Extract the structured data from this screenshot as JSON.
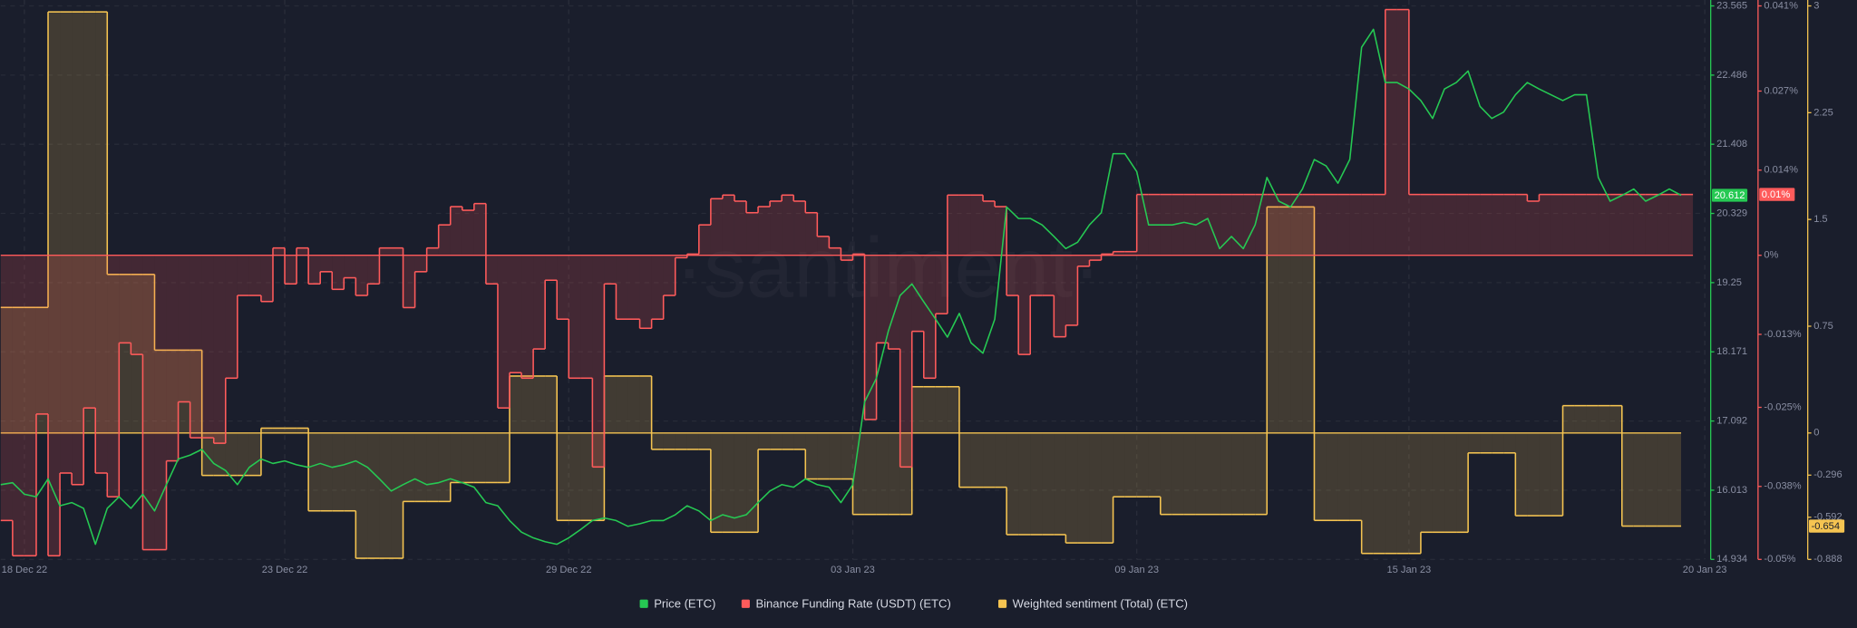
{
  "chart_data": {
    "type": "line",
    "watermark": "·santiment·",
    "categories": [
      null,
      null,
      "18 Dec 22",
      null,
      null,
      null,
      null,
      null,
      null,
      null,
      null,
      null,
      null,
      null,
      null,
      null,
      null,
      null,
      null,
      null,
      null,
      null,
      null,
      null,
      "23 Dec 22",
      null,
      null,
      null,
      null,
      null,
      null,
      null,
      null,
      null,
      null,
      null,
      null,
      null,
      null,
      null,
      null,
      null,
      null,
      null,
      null,
      null,
      null,
      null,
      "29 Dec 22",
      null,
      null,
      null,
      null,
      null,
      null,
      null,
      null,
      null,
      null,
      null,
      null,
      null,
      null,
      null,
      null,
      null,
      null,
      null,
      null,
      null,
      null,
      null,
      "03 Jan 23",
      null,
      null,
      null,
      null,
      null,
      null,
      null,
      null,
      null,
      null,
      null,
      null,
      null,
      null,
      null,
      null,
      null,
      null,
      null,
      null,
      null,
      null,
      null,
      "09 Jan 23",
      null,
      null,
      null,
      null,
      null,
      null,
      null,
      null,
      null,
      null,
      null,
      null,
      null,
      null,
      null,
      null,
      null,
      null,
      null,
      null,
      null,
      null,
      "15 Jan 23",
      null,
      null,
      null,
      null,
      null,
      null,
      null,
      null,
      null,
      null,
      null,
      null,
      null,
      null,
      null,
      null,
      null,
      null,
      null,
      null,
      null,
      null,
      null,
      null,
      "20 Jan 23"
    ],
    "series": [
      {
        "name": "Price (ETC)",
        "color": "#26c953",
        "style": "line",
        "axis": "y",
        "last_value_label": "20.612",
        "values": [
          16.1,
          16.13,
          15.95,
          15.91,
          16.19,
          15.77,
          15.82,
          15.73,
          15.17,
          15.73,
          15.91,
          15.73,
          15.95,
          15.69,
          16.1,
          16.5,
          16.56,
          16.65,
          16.43,
          16.32,
          16.1,
          16.37,
          16.5,
          16.43,
          16.47,
          16.41,
          16.37,
          16.43,
          16.37,
          16.41,
          16.47,
          16.37,
          16.19,
          16.0,
          16.1,
          16.19,
          16.1,
          16.13,
          16.19,
          16.13,
          16.06,
          15.82,
          15.77,
          15.54,
          15.36,
          15.27,
          15.21,
          15.17,
          15.27,
          15.4,
          15.54,
          15.58,
          15.54,
          15.45,
          15.49,
          15.54,
          15.54,
          15.63,
          15.77,
          15.69,
          15.54,
          15.63,
          15.58,
          15.63,
          15.82,
          16.0,
          16.1,
          16.06,
          16.19,
          16.1,
          16.06,
          15.82,
          16.1,
          17.39,
          17.76,
          18.49,
          19.05,
          19.23,
          18.95,
          18.68,
          18.4,
          18.77,
          18.31,
          18.15,
          18.68,
          20.43,
          20.25,
          20.25,
          20.15,
          19.97,
          19.78,
          19.88,
          20.15,
          20.34,
          21.26,
          21.26,
          20.98,
          20.15,
          20.15,
          20.15,
          20.19,
          20.15,
          20.25,
          19.78,
          19.97,
          19.78,
          20.15,
          20.89,
          20.52,
          20.43,
          20.71,
          21.17,
          21.07,
          20.8,
          21.17,
          22.92,
          23.2,
          22.37,
          22.37,
          22.27,
          22.09,
          21.81,
          22.27,
          22.37,
          22.55,
          22.0,
          21.81,
          21.91,
          22.18,
          22.37,
          22.27,
          22.18,
          22.09,
          22.18,
          22.18,
          20.89,
          20.52,
          20.61,
          20.71,
          20.52,
          20.61,
          20.71,
          20.612,
          null,
          null
        ]
      },
      {
        "name": "Binance Funding Rate (USDT) (ETC)",
        "color": "#ff5b5b",
        "style": "step",
        "axis": "y2",
        "last_value_label": "0.01%",
        "values": [
          -0.0436,
          -0.0494,
          -0.0494,
          -0.0261,
          -0.0494,
          -0.0358,
          -0.0377,
          -0.0251,
          -0.0358,
          -0.0397,
          -0.0144,
          -0.0163,
          -0.0484,
          -0.0484,
          -0.0338,
          -0.0241,
          -0.03,
          -0.03,
          -0.0309,
          -0.0202,
          -0.0066,
          -0.0066,
          -0.0076,
          0.0012,
          -0.0047,
          0.0012,
          -0.0047,
          -0.0027,
          -0.0056,
          -0.0037,
          -0.0066,
          -0.0047,
          0.0012,
          0.0012,
          -0.0086,
          -0.0027,
          0.0012,
          0.005,
          0.008,
          0.0074,
          0.0085,
          -0.0047,
          -0.0251,
          -0.0193,
          -0.0202,
          -0.0154,
          -0.0041,
          -0.0105,
          -0.0202,
          -0.0202,
          -0.0348,
          -0.0047,
          -0.0105,
          -0.0105,
          -0.012,
          -0.0105,
          -0.0066,
          -0.0004,
          0.0002,
          0.005,
          0.0093,
          0.0099,
          0.0089,
          0.007,
          0.008,
          0.0089,
          0.0099,
          0.0089,
          0.007,
          0.0031,
          0.0012,
          -0.0008,
          0.0002,
          -0.027,
          -0.0144,
          -0.0154,
          -0.0348,
          -0.0125,
          -0.0202,
          -0.0096,
          0.0099,
          0.0099,
          0.0099,
          0.0089,
          0.008,
          -0.0066,
          -0.0163,
          -0.0066,
          -0.0066,
          -0.0134,
          -0.0115,
          -0.0018,
          -0.0008,
          0.0002,
          0.0006,
          0.0006,
          0.01,
          0.01,
          0.01,
          0.01,
          0.01,
          0.01,
          0.01,
          0.01,
          0.01,
          0.01,
          0.01,
          0.01,
          0.01,
          0.01,
          0.01,
          0.01,
          0.01,
          0.01,
          0.01,
          0.01,
          0.01,
          0.0404,
          0.0404,
          0.01,
          0.01,
          0.01,
          0.01,
          0.01,
          0.01,
          0.01,
          0.01,
          0.01,
          0.01,
          0.0089,
          0.01,
          0.01,
          0.01,
          0.01,
          0.01,
          0.01,
          0.01,
          0.01,
          0.01,
          0.01,
          0.01,
          0.01,
          0.01,
          null,
          null
        ]
      },
      {
        "name": "Weighted sentiment (Total) (ETC)",
        "color": "#f5c451",
        "style": "step",
        "axis": "y3",
        "last_value_label": "-0.654",
        "values": [
          0.882,
          0.882,
          0.882,
          0.882,
          2.958,
          2.958,
          2.958,
          2.958,
          2.958,
          1.114,
          1.114,
          1.114,
          1.114,
          0.582,
          0.582,
          0.582,
          0.582,
          -0.298,
          -0.298,
          -0.298,
          -0.298,
          -0.298,
          0.034,
          0.034,
          0.034,
          0.034,
          -0.547,
          -0.547,
          -0.547,
          -0.547,
          -0.88,
          -0.88,
          -0.88,
          -0.88,
          -0.481,
          -0.481,
          -0.481,
          -0.481,
          -0.348,
          -0.348,
          -0.348,
          -0.348,
          -0.348,
          0.4,
          0.4,
          0.4,
          0.4,
          -0.614,
          -0.614,
          -0.614,
          -0.614,
          0.4,
          0.4,
          0.4,
          0.4,
          -0.115,
          -0.115,
          -0.115,
          -0.115,
          -0.115,
          -0.697,
          -0.697,
          -0.697,
          -0.697,
          -0.115,
          -0.115,
          -0.115,
          -0.115,
          -0.323,
          -0.323,
          -0.323,
          -0.323,
          -0.572,
          -0.572,
          -0.572,
          -0.572,
          -0.572,
          0.325,
          0.325,
          0.325,
          0.325,
          -0.381,
          -0.381,
          -0.381,
          -0.381,
          -0.714,
          -0.714,
          -0.714,
          -0.714,
          -0.714,
          -0.772,
          -0.772,
          -0.772,
          -0.772,
          -0.448,
          -0.448,
          -0.448,
          -0.448,
          -0.572,
          -0.572,
          -0.572,
          -0.572,
          -0.572,
          -0.572,
          -0.572,
          -0.572,
          -0.572,
          1.588,
          1.588,
          1.588,
          1.588,
          -0.614,
          -0.614,
          -0.614,
          -0.614,
          -0.846,
          -0.846,
          -0.846,
          -0.846,
          -0.846,
          -0.697,
          -0.697,
          -0.697,
          -0.697,
          -0.14,
          -0.14,
          -0.14,
          -0.14,
          -0.581,
          -0.581,
          -0.581,
          -0.581,
          0.192,
          0.192,
          0.192,
          0.192,
          0.192,
          -0.654,
          -0.654,
          -0.654,
          -0.654,
          -0.654,
          null,
          null,
          null
        ]
      }
    ],
    "ylim": [
      14.934,
      23.565
    ],
    "yticks": [
      14.934,
      16.013,
      17.092,
      18.171,
      19.25,
      20.329,
      21.408,
      22.486,
      23.565
    ],
    "y2lim": [
      -0.05,
      0.041
    ],
    "y2ticks": [
      {
        "value": -0.05,
        "label": "-0.05%"
      },
      {
        "value": -0.038,
        "label": "-0.038%"
      },
      {
        "value": -0.025,
        "label": "-0.025%"
      },
      {
        "value": -0.013,
        "label": "-0.013%"
      },
      {
        "value": 0,
        "label": "0%"
      },
      {
        "value": 0.014,
        "label": "0.014%"
      },
      {
        "value": 0.027,
        "label": "0.027%"
      },
      {
        "value": 0.041,
        "label": "0.041%"
      }
    ],
    "y3lim": [
      -0.888,
      3
    ],
    "y3ticks": [
      -0.888,
      -0.592,
      -0.296,
      0,
      0.75,
      1.5,
      2.25,
      3
    ],
    "grid": true
  }
}
